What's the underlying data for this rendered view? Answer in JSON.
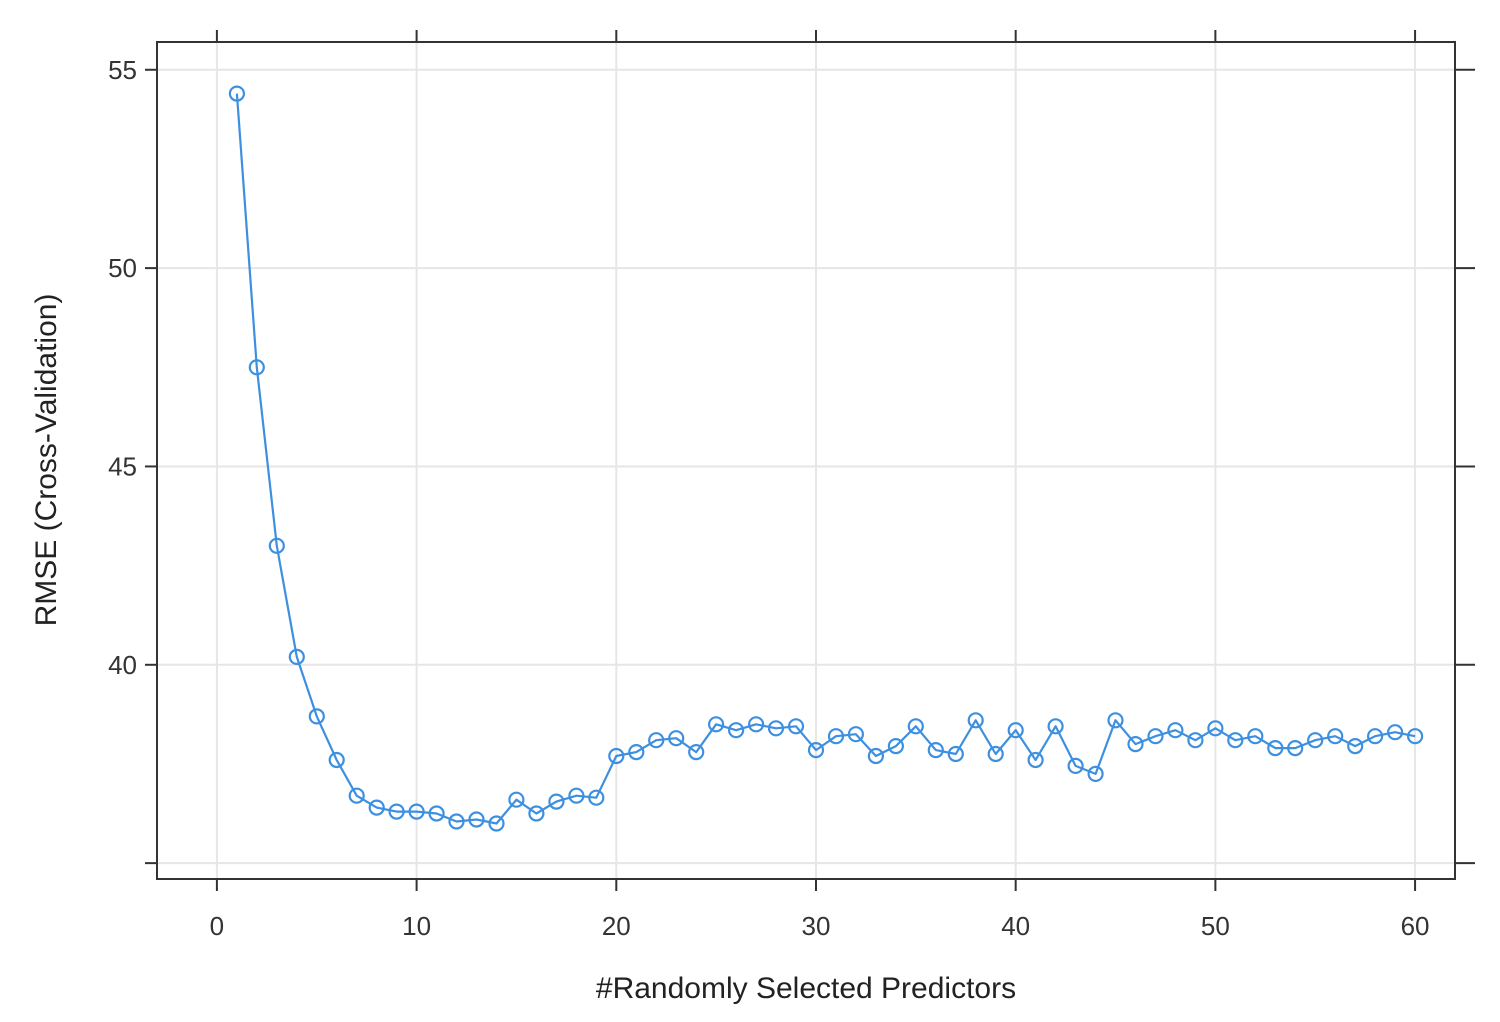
{
  "chart_data": {
    "type": "line",
    "title": "",
    "xlabel": "#Randomly Selected Predictors",
    "ylabel": "RMSE (Cross-Validation)",
    "xlim": [
      -3,
      62
    ],
    "ylim": [
      34.6,
      55.7
    ],
    "xticks": [
      0,
      10,
      20,
      30,
      40,
      50,
      60
    ],
    "yticks": [
      35,
      40,
      45,
      50,
      55
    ],
    "ytick_labels": [
      "",
      "40",
      "45",
      "50",
      "55"
    ],
    "grid": true,
    "legend": "none",
    "series": [
      {
        "color": "#3d8fe0",
        "marker": "circle",
        "x": [
          1,
          2,
          3,
          4,
          5,
          6,
          7,
          8,
          9,
          10,
          11,
          12,
          13,
          14,
          15,
          16,
          17,
          18,
          19,
          20,
          21,
          22,
          23,
          24,
          25,
          26,
          27,
          28,
          29,
          30,
          31,
          32,
          33,
          34,
          35,
          36,
          37,
          38,
          39,
          40,
          41,
          42,
          43,
          44,
          45,
          46,
          47,
          48,
          49,
          50,
          51,
          52,
          53,
          54,
          55,
          56,
          57,
          58,
          59,
          60
        ],
        "y": [
          54.4,
          47.5,
          43.0,
          40.2,
          38.7,
          37.6,
          36.7,
          36.4,
          36.3,
          36.3,
          36.25,
          36.05,
          36.1,
          36.0,
          36.6,
          36.25,
          36.55,
          36.7,
          36.65,
          37.7,
          37.8,
          38.1,
          38.15,
          37.8,
          38.5,
          38.35,
          38.5,
          38.4,
          38.45,
          37.85,
          38.2,
          38.25,
          37.7,
          37.95,
          38.45,
          37.85,
          37.75,
          38.6,
          37.75,
          38.35,
          37.6,
          38.45,
          37.45,
          37.25,
          38.6,
          38.0,
          38.2,
          38.35,
          38.1,
          38.4,
          38.1,
          38.2,
          37.9,
          37.9,
          38.1,
          38.2,
          37.95,
          38.2,
          38.3,
          38.2
        ]
      }
    ]
  }
}
